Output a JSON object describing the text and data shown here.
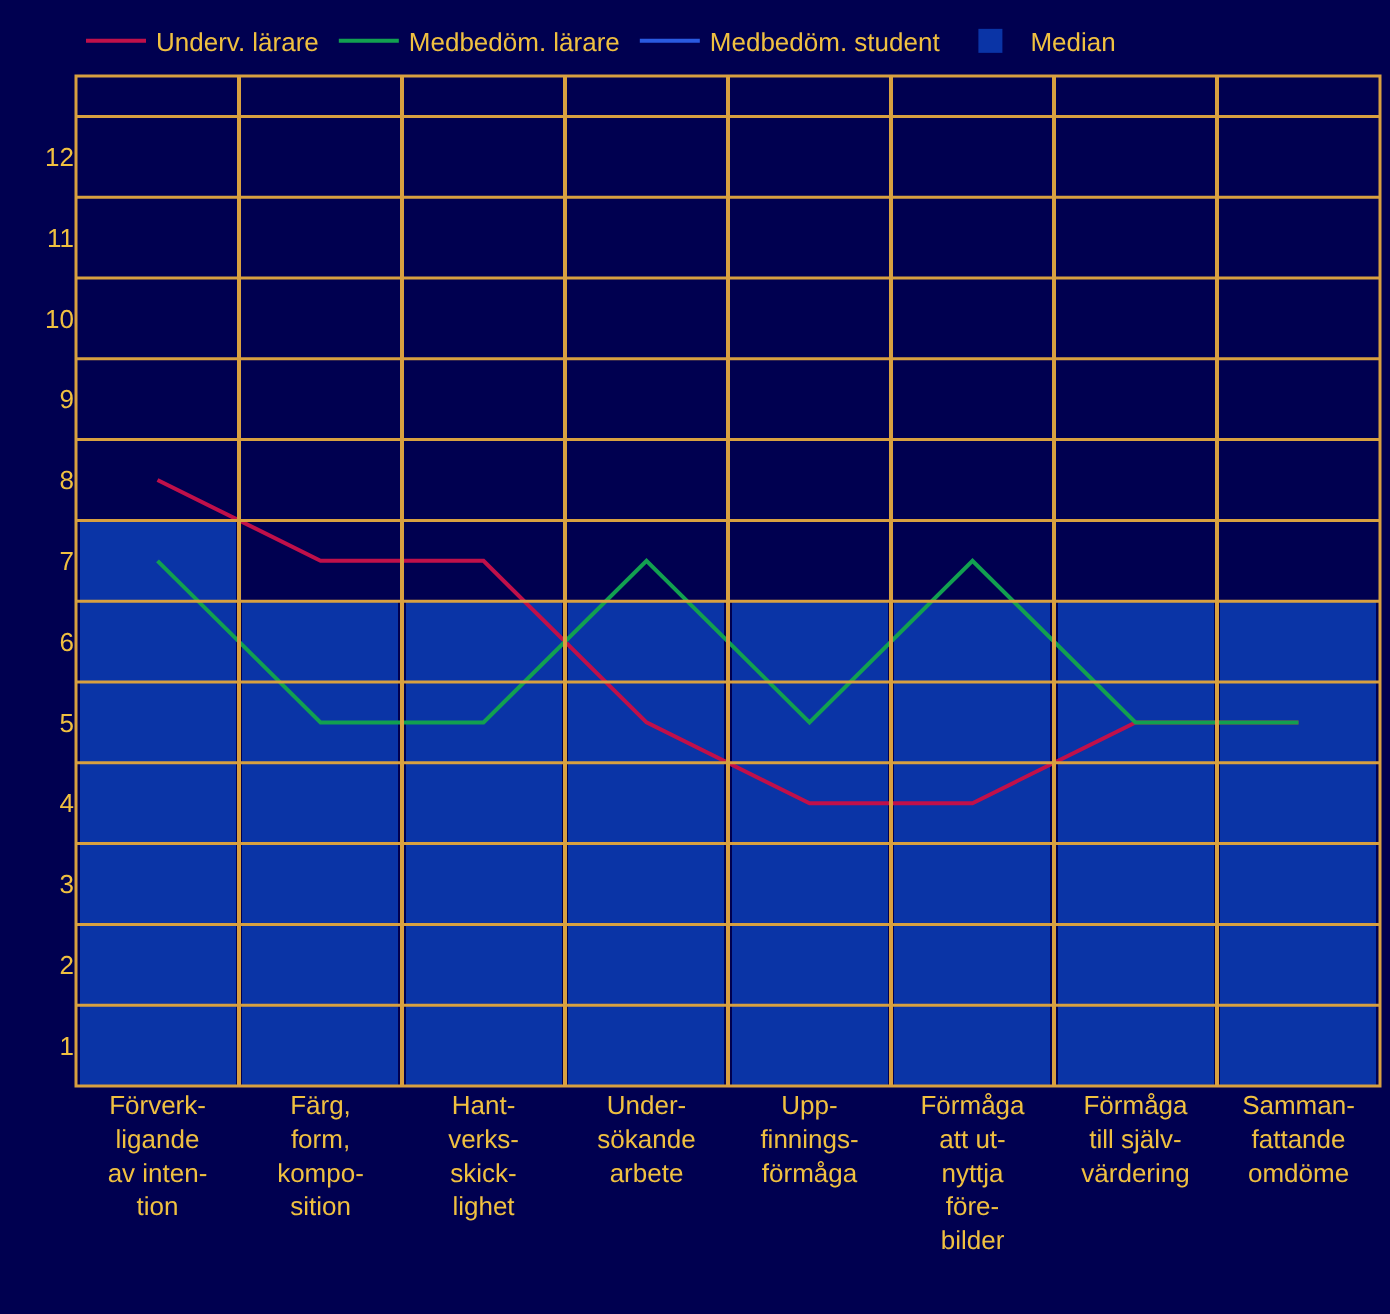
{
  "chart_data": {
    "type": "line",
    "categories": [
      "Förverk-\nligande\nav inten-\ntion",
      "Färg,\nform,\nkompo-\nsition",
      "Hant-\nverks-\nskick-\nlighet",
      "Under-\nsökande\narbete",
      "Upp-\nfinnings-\nförmåga",
      "Förmåga\natt ut-\nnyttja\nföre-\nbilder",
      "Förmåga\ntill själv-\nvärdering",
      "Samman-\nfattande\nomdöme"
    ],
    "series": [
      {
        "name": "Median",
        "type": "bar",
        "color": "#0a34a6",
        "values": [
          7.5,
          6.5,
          6.5,
          6.5,
          6.5,
          6.5,
          6.5,
          6.5
        ]
      },
      {
        "name": "Underv. lärare",
        "color": "#c0104a",
        "values": [
          8,
          7,
          7,
          5,
          4,
          4,
          5,
          5
        ]
      },
      {
        "name": "Medbedöm. lärare",
        "color": "#12a050",
        "values": [
          7,
          5,
          5,
          7,
          5,
          7,
          5,
          5
        ]
      },
      {
        "name": "Medbedöm. student",
        "color": "#2a5ae0",
        "values": [
          null,
          null,
          null,
          null,
          null,
          null,
          null,
          null
        ]
      }
    ],
    "ylim": [
      0.5,
      13
    ],
    "yticks": [
      1,
      {
        "value": 1.5,
        "label": null
      },
      2,
      {
        "value": 2.5,
        "label": null
      },
      3,
      {
        "value": 3.5,
        "label": null
      },
      4,
      {
        "value": 4.5,
        "label": null
      },
      5,
      {
        "value": 5.5,
        "label": null
      },
      6,
      {
        "value": 6.5,
        "label": null
      },
      7,
      {
        "value": 7.5,
        "label": null
      },
      8,
      {
        "value": 8.5,
        "label": null
      },
      9,
      {
        "value": 9.5,
        "label": null
      },
      10,
      {
        "value": 10.5,
        "label": null
      },
      11,
      {
        "value": 11.5,
        "label": null
      },
      12,
      {
        "value": 12.5,
        "label": null
      }
    ],
    "grid": true,
    "legend": "top",
    "marker": "none",
    "line_style": "solid"
  }
}
